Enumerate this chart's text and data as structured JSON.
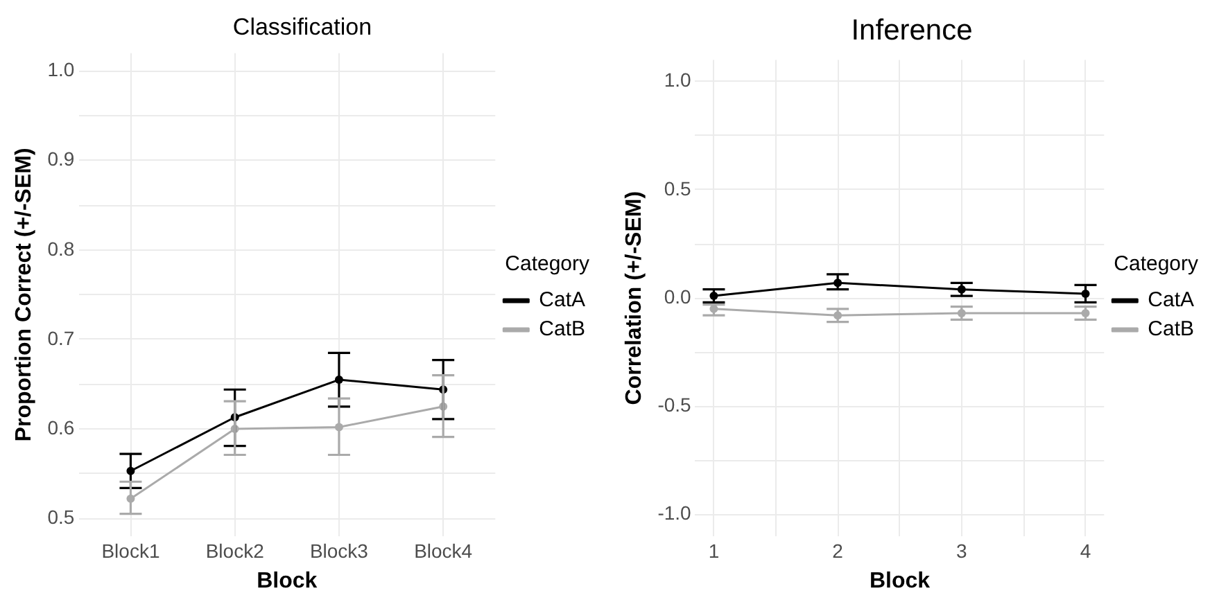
{
  "chart_data": [
    {
      "type": "line",
      "title": "Classification",
      "xlabel": "Block",
      "ylabel": "Proportion Correct (+/-SEM)",
      "legend_title": "Category",
      "legend": "right",
      "grid": true,
      "marker": "circle",
      "line_style": "solid",
      "categories": [
        "Block1",
        "Block2",
        "Block3",
        "Block4"
      ],
      "ylim": [
        0.48,
        1.02
      ],
      "yticks": [
        0.5,
        {
          "value": 0.55,
          "label": null
        },
        0.6,
        {
          "value": 0.65,
          "label": null
        },
        0.7,
        {
          "value": 0.75,
          "label": null
        },
        0.8,
        {
          "value": 0.85,
          "label": null
        },
        0.9,
        {
          "value": 0.95,
          "label": null
        },
        {
          "value": 1.0,
          "label": "1.0"
        }
      ],
      "series": [
        {
          "name": "CatA",
          "color": "#000000",
          "values": [
            0.553,
            0.613,
            0.655,
            0.644
          ],
          "errors": [
            [
              0.534,
              0.572
            ],
            [
              0.581,
              0.644
            ],
            [
              0.625,
              0.685
            ],
            [
              0.611,
              0.677
            ]
          ]
        },
        {
          "name": "CatB",
          "color": "#aaaaaa",
          "values": [
            0.522,
            0.6,
            0.602,
            0.625
          ],
          "errors": [
            [
              0.505,
              0.541
            ],
            [
              0.571,
              0.631
            ],
            [
              0.571,
              0.634
            ],
            [
              0.591,
              0.66
            ]
          ]
        }
      ]
    },
    {
      "type": "line",
      "title": "Inference",
      "xlabel": "Block",
      "ylabel": "Correlation (+/-SEM)",
      "legend_title": "Category",
      "legend": "right",
      "grid": true,
      "marker": "circle",
      "line_style": "solid",
      "x": [
        1,
        2,
        3,
        4
      ],
      "xlim": [
        0.85,
        4.15
      ],
      "xticks": [
        1,
        {
          "value": 1.5,
          "label": null
        },
        2,
        {
          "value": 2.5,
          "label": null
        },
        3,
        {
          "value": 3.5,
          "label": null
        },
        4
      ],
      "ylim": [
        -1.1,
        1.1
      ],
      "yticks": [
        {
          "value": -1.0,
          "label": "-1.0"
        },
        {
          "value": -0.75,
          "label": null
        },
        -0.5,
        {
          "value": -0.25,
          "label": null
        },
        {
          "value": 0,
          "label": "0.0"
        },
        {
          "value": 0.25,
          "label": null
        },
        0.5,
        {
          "value": 0.75,
          "label": null
        },
        {
          "value": 1.0,
          "label": "1.0"
        }
      ],
      "series": [
        {
          "name": "CatA",
          "color": "#000000",
          "values": [
            0.01,
            0.07,
            0.04,
            0.02
          ],
          "errors": [
            [
              -0.02,
              0.04
            ],
            [
              0.04,
              0.11
            ],
            [
              0.01,
              0.07
            ],
            [
              -0.02,
              0.06
            ]
          ]
        },
        {
          "name": "CatB",
          "color": "#aaaaaa",
          "values": [
            -0.05,
            -0.08,
            -0.07,
            -0.07
          ],
          "errors": [
            [
              -0.08,
              -0.03
            ],
            [
              -0.11,
              -0.05
            ],
            [
              -0.1,
              -0.04
            ],
            [
              -0.1,
              -0.04
            ]
          ]
        }
      ]
    }
  ]
}
